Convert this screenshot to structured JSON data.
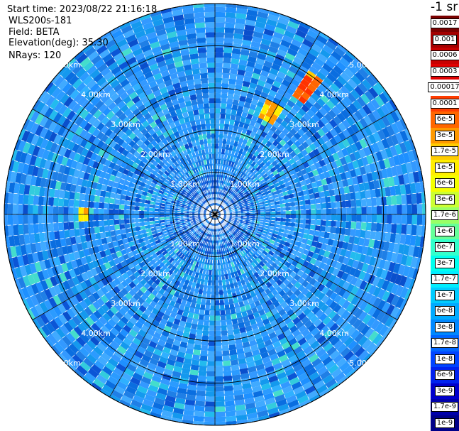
{
  "header": {
    "start_time": "Start time: 2023/08/22 21:16:18",
    "instrument": "WLS200s-181",
    "field": "Field: BETA",
    "elevation": "Elevation(deg): 35.30",
    "nrays": "NRays: 120"
  },
  "colorbar": {
    "unit": "-1 sr",
    "entries": [
      {
        "label": "0.0017",
        "color": "#7a0000"
      },
      {
        "label": "0.001",
        "color": "#a40000"
      },
      {
        "label": "0.0006",
        "color": "#c80000"
      },
      {
        "label": "0.0003",
        "color": "#e00000"
      },
      {
        "label": "0.00017",
        "color": "#ffffff"
      },
      {
        "label": "0.0001",
        "color": "#ff3c00"
      },
      {
        "label": "6e-5",
        "color": "#ff6600"
      },
      {
        "label": "3e-5",
        "color": "#ff9900"
      },
      {
        "label": "1.7e-5",
        "color": "#ffcc00"
      },
      {
        "label": "1e-5",
        "color": "#ffee00"
      },
      {
        "label": "6e-6",
        "color": "#f4ff00"
      },
      {
        "label": "3e-6",
        "color": "#ccff33"
      },
      {
        "label": "1.7e-6",
        "color": "#99ff66"
      },
      {
        "label": "1e-6",
        "color": "#66ff99"
      },
      {
        "label": "6e-7",
        "color": "#33ffcc"
      },
      {
        "label": "3e-7",
        "color": "#00ffee"
      },
      {
        "label": "1.7e-7",
        "color": "#00eeff"
      },
      {
        "label": "1e-7",
        "color": "#00ccff"
      },
      {
        "label": "6e-8",
        "color": "#00aaff"
      },
      {
        "label": "3e-8",
        "color": "#0088ff"
      },
      {
        "label": "1.7e-8",
        "color": "#0066ff"
      },
      {
        "label": "1e-8",
        "color": "#0044ff"
      },
      {
        "label": "6e-9",
        "color": "#0022ee"
      },
      {
        "label": "3e-9",
        "color": "#0000cc"
      },
      {
        "label": "1.7e-9",
        "color": "#0000aa"
      },
      {
        "label": "1e-9",
        "color": "#000088"
      }
    ]
  },
  "chart_data": {
    "type": "heatmap",
    "projection": "polar-ppi",
    "title": "",
    "field": "BETA",
    "elevation_deg": 35.3,
    "n_rays": 120,
    "range_rings_km": [
      1,
      2,
      3,
      4,
      5
    ],
    "range_ring_labels": [
      "1.00km",
      "2.00km",
      "3.00km",
      "4.00km",
      "5.00km"
    ],
    "max_range_km": 5.0,
    "spoke_step_deg": 30,
    "grid": true,
    "dominant_value": "3e-8 to 6e-8",
    "hotspots": [
      {
        "azimuth_deg": 36,
        "range_km": [
          3.3,
          4.0
        ],
        "value": "6e-5 to 0.0003"
      },
      {
        "azimuth_deg": 28,
        "range_km": [
          2.5,
          2.9
        ],
        "value": "1.7e-5 to 1e-4"
      },
      {
        "azimuth_deg": 270,
        "range_km": [
          3.0,
          3.2
        ],
        "value": "1e-5 to 1e-4"
      }
    ]
  }
}
